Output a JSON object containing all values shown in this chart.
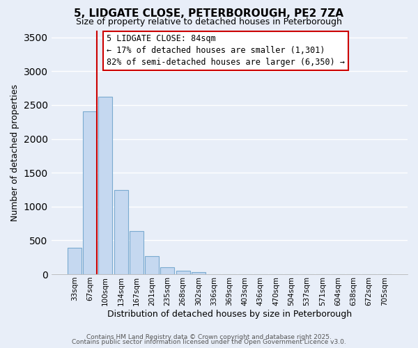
{
  "title": "5, LIDGATE CLOSE, PETERBOROUGH, PE2 7ZA",
  "subtitle": "Size of property relative to detached houses in Peterborough",
  "xlabel": "Distribution of detached houses by size in Peterborough",
  "ylabel": "Number of detached properties",
  "categories": [
    "33sqm",
    "67sqm",
    "100sqm",
    "134sqm",
    "167sqm",
    "201sqm",
    "235sqm",
    "268sqm",
    "302sqm",
    "336sqm",
    "369sqm",
    "403sqm",
    "436sqm",
    "470sqm",
    "504sqm",
    "537sqm",
    "571sqm",
    "604sqm",
    "638sqm",
    "672sqm",
    "705sqm"
  ],
  "values": [
    390,
    2410,
    2620,
    1240,
    640,
    270,
    100,
    55,
    30,
    0,
    0,
    0,
    0,
    0,
    0,
    0,
    0,
    0,
    0,
    0,
    0
  ],
  "bar_color": "#c5d8f0",
  "bar_edge_color": "#7aaad0",
  "vline_color": "#cc0000",
  "annotation_title": "5 LIDGATE CLOSE: 84sqm",
  "annotation_line1": "← 17% of detached houses are smaller (1,301)",
  "annotation_line2": "82% of semi-detached houses are larger (6,350) →",
  "annotation_box_facecolor": "#ffffff",
  "annotation_box_edgecolor": "#cc0000",
  "ylim": [
    0,
    3600
  ],
  "yticks": [
    0,
    500,
    1000,
    1500,
    2000,
    2500,
    3000,
    3500
  ],
  "background_color": "#e8eef8",
  "grid_color": "#ffffff",
  "footer1": "Contains HM Land Registry data © Crown copyright and database right 2025.",
  "footer2": "Contains public sector information licensed under the Open Government Licence v3.0."
}
